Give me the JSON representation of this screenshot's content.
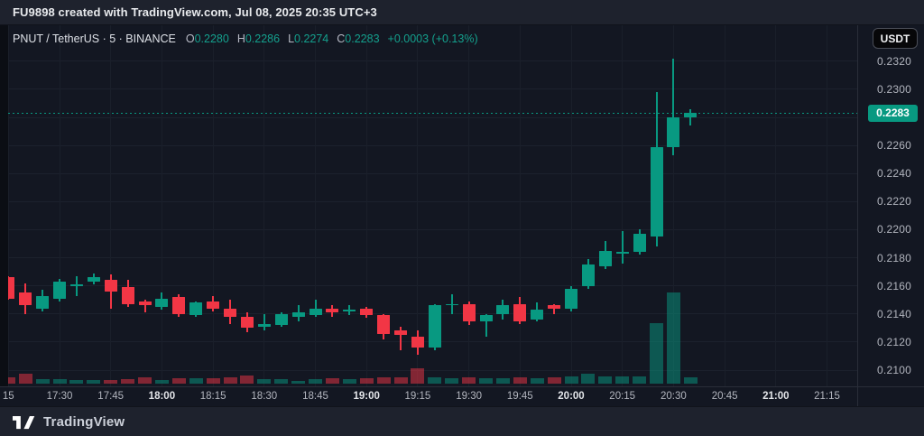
{
  "top_bar": {
    "text": "FU9898 created with TradingView.com, Jul 08, 2025 20:35 UTC+3"
  },
  "legend": {
    "symbol_line": "PNUT / TetherUS · 5 · BINANCE",
    "ohlc": [
      {
        "label": "O",
        "value": "0.2280"
      },
      {
        "label": "H",
        "value": "0.2286"
      },
      {
        "label": "L",
        "value": "0.2274"
      },
      {
        "label": "C",
        "value": "0.2283"
      }
    ],
    "change": "+0.0003 (+0.13%)"
  },
  "currency_button": "USDT",
  "price_axis": {
    "labels": [
      "0.2320",
      "0.2300",
      "0.2280",
      "0.2260",
      "0.2240",
      "0.2220",
      "0.2200",
      "0.2180",
      "0.2160",
      "0.2140",
      "0.2120",
      "0.2100"
    ],
    "current_price": "0.2283"
  },
  "time_axis": {
    "ticks": [
      {
        "label": "15",
        "bold": false
      },
      {
        "label": "17:30",
        "bold": false
      },
      {
        "label": "17:45",
        "bold": false
      },
      {
        "label": "18:00",
        "bold": true
      },
      {
        "label": "18:15",
        "bold": false
      },
      {
        "label": "18:30",
        "bold": false
      },
      {
        "label": "18:45",
        "bold": false
      },
      {
        "label": "19:00",
        "bold": true
      },
      {
        "label": "19:15",
        "bold": false
      },
      {
        "label": "19:30",
        "bold": false
      },
      {
        "label": "19:45",
        "bold": false
      },
      {
        "label": "20:00",
        "bold": true
      },
      {
        "label": "20:15",
        "bold": false
      },
      {
        "label": "20:30",
        "bold": false
      },
      {
        "label": "20:45",
        "bold": false
      },
      {
        "label": "21:00",
        "bold": true
      },
      {
        "label": "21:15",
        "bold": false
      }
    ]
  },
  "footer": {
    "brand": "TradingView"
  },
  "colors": {
    "background": "#131722",
    "panel": "#1e222d",
    "up": "#089981",
    "down": "#F23645",
    "vol_up": "rgba(8,153,129,0.5)",
    "vol_down": "rgba(242,54,69,0.5)",
    "text_primary": "#e8eaed",
    "text_secondary": "#b2b5be",
    "price_tag_bg": "#089981"
  },
  "chart_data": {
    "type": "candlestick",
    "title": "PNUT / TetherUS",
    "exchange": "BINANCE",
    "interval": "5",
    "quote": "USDT",
    "price_axis_range": [
      0.21,
      0.232
    ],
    "grid": true,
    "last_price": 0.2283,
    "volume_unit": "relative-height",
    "candles": [
      {
        "t": "17:15",
        "o": 0.2166,
        "h": 0.2167,
        "l": 0.215,
        "c": 0.2151,
        "v": 7
      },
      {
        "t": "17:20",
        "o": 0.2155,
        "h": 0.2162,
        "l": 0.214,
        "c": 0.2146,
        "v": 11
      },
      {
        "t": "17:25",
        "o": 0.2144,
        "h": 0.2157,
        "l": 0.2142,
        "c": 0.2153,
        "v": 5
      },
      {
        "t": "17:30",
        "o": 0.2151,
        "h": 0.2165,
        "l": 0.2149,
        "c": 0.2163,
        "v": 4.5
      },
      {
        "t": "17:35",
        "o": 0.216,
        "h": 0.2167,
        "l": 0.2153,
        "c": 0.2161,
        "v": 3.5
      },
      {
        "t": "17:40",
        "o": 0.2163,
        "h": 0.2169,
        "l": 0.2161,
        "c": 0.2166,
        "v": 4
      },
      {
        "t": "17:45",
        "o": 0.2164,
        "h": 0.2168,
        "l": 0.2144,
        "c": 0.2156,
        "v": 3.5
      },
      {
        "t": "17:50",
        "o": 0.2159,
        "h": 0.2164,
        "l": 0.2145,
        "c": 0.2147,
        "v": 4.5
      },
      {
        "t": "17:55",
        "o": 0.2149,
        "h": 0.215,
        "l": 0.2141,
        "c": 0.2146,
        "v": 7
      },
      {
        "t": "18:00",
        "o": 0.2145,
        "h": 0.2155,
        "l": 0.2143,
        "c": 0.2151,
        "v": 4
      },
      {
        "t": "18:05",
        "o": 0.2152,
        "h": 0.2154,
        "l": 0.2138,
        "c": 0.214,
        "v": 5.5
      },
      {
        "t": "18:10",
        "o": 0.2139,
        "h": 0.2149,
        "l": 0.2138,
        "c": 0.2148,
        "v": 5.5
      },
      {
        "t": "18:15",
        "o": 0.2149,
        "h": 0.2153,
        "l": 0.2142,
        "c": 0.2144,
        "v": 5.5
      },
      {
        "t": "18:20",
        "o": 0.2144,
        "h": 0.215,
        "l": 0.2133,
        "c": 0.2138,
        "v": 7
      },
      {
        "t": "18:25",
        "o": 0.2138,
        "h": 0.2141,
        "l": 0.2127,
        "c": 0.213,
        "v": 9
      },
      {
        "t": "18:30",
        "o": 0.2131,
        "h": 0.214,
        "l": 0.2128,
        "c": 0.2133,
        "v": 4.5
      },
      {
        "t": "18:35",
        "o": 0.2132,
        "h": 0.2141,
        "l": 0.2131,
        "c": 0.214,
        "v": 5
      },
      {
        "t": "18:40",
        "o": 0.2138,
        "h": 0.2146,
        "l": 0.2135,
        "c": 0.2141,
        "v": 2.5
      },
      {
        "t": "18:45",
        "o": 0.2139,
        "h": 0.215,
        "l": 0.2138,
        "c": 0.2144,
        "v": 4.5
      },
      {
        "t": "18:50",
        "o": 0.2144,
        "h": 0.2146,
        "l": 0.2138,
        "c": 0.2141,
        "v": 5.5
      },
      {
        "t": "18:55",
        "o": 0.2142,
        "h": 0.2146,
        "l": 0.2139,
        "c": 0.2143,
        "v": 5
      },
      {
        "t": "19:00",
        "o": 0.2144,
        "h": 0.2145,
        "l": 0.2137,
        "c": 0.2139,
        "v": 6
      },
      {
        "t": "19:05",
        "o": 0.2139,
        "h": 0.214,
        "l": 0.2122,
        "c": 0.2126,
        "v": 7
      },
      {
        "t": "19:10",
        "o": 0.2128,
        "h": 0.2131,
        "l": 0.2114,
        "c": 0.2125,
        "v": 7
      },
      {
        "t": "19:15",
        "o": 0.2124,
        "h": 0.2128,
        "l": 0.2111,
        "c": 0.2116,
        "v": 17
      },
      {
        "t": "19:20",
        "o": 0.2116,
        "h": 0.2147,
        "l": 0.2114,
        "c": 0.2146,
        "v": 7
      },
      {
        "t": "19:25",
        "o": 0.2146,
        "h": 0.2154,
        "l": 0.214,
        "c": 0.2147,
        "v": 6
      },
      {
        "t": "19:30",
        "o": 0.2147,
        "h": 0.2149,
        "l": 0.2132,
        "c": 0.2135,
        "v": 7
      },
      {
        "t": "19:35",
        "o": 0.2135,
        "h": 0.214,
        "l": 0.2124,
        "c": 0.2139,
        "v": 6
      },
      {
        "t": "19:40",
        "o": 0.214,
        "h": 0.215,
        "l": 0.2136,
        "c": 0.2146,
        "v": 5.5
      },
      {
        "t": "19:45",
        "o": 0.2147,
        "h": 0.2152,
        "l": 0.2133,
        "c": 0.2135,
        "v": 7
      },
      {
        "t": "19:50",
        "o": 0.2136,
        "h": 0.2148,
        "l": 0.2135,
        "c": 0.2143,
        "v": 6
      },
      {
        "t": "19:55",
        "o": 0.2146,
        "h": 0.2147,
        "l": 0.214,
        "c": 0.2144,
        "v": 7
      },
      {
        "t": "20:00",
        "o": 0.2144,
        "h": 0.216,
        "l": 0.2142,
        "c": 0.2158,
        "v": 8
      },
      {
        "t": "20:05",
        "o": 0.216,
        "h": 0.2179,
        "l": 0.2158,
        "c": 0.2175,
        "v": 11
      },
      {
        "t": "20:10",
        "o": 0.2174,
        "h": 0.2192,
        "l": 0.2172,
        "c": 0.2185,
        "v": 8
      },
      {
        "t": "20:15",
        "o": 0.2183,
        "h": 0.2199,
        "l": 0.2176,
        "c": 0.2184,
        "v": 7.5
      },
      {
        "t": "20:20",
        "o": 0.2184,
        "h": 0.22,
        "l": 0.2182,
        "c": 0.2197,
        "v": 8
      },
      {
        "t": "20:25",
        "o": 0.2195,
        "h": 0.2298,
        "l": 0.2188,
        "c": 0.2259,
        "v": 67
      },
      {
        "t": "20:30",
        "o": 0.2259,
        "h": 0.2322,
        "l": 0.2253,
        "c": 0.228,
        "v": 101
      },
      {
        "t": "20:35",
        "o": 0.228,
        "h": 0.2286,
        "l": 0.2274,
        "c": 0.2283,
        "v": 7
      }
    ]
  }
}
